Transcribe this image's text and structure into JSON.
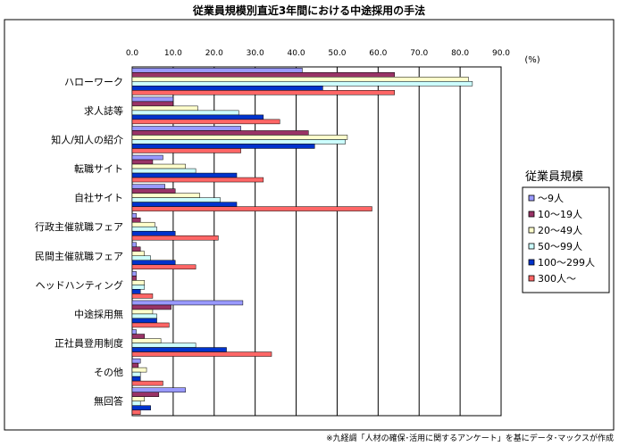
{
  "chart_data": {
    "type": "bar",
    "orientation": "horizontal",
    "title": "従業員規模別直近3年間における中途採用の手法",
    "unit_label": "(%)",
    "xlim": [
      0,
      90
    ],
    "xticks": [
      "0.0",
      "10.0",
      "20.0",
      "30.0",
      "40.0",
      "50.0",
      "60.0",
      "70.0",
      "80.0",
      "90.0"
    ],
    "grid": true,
    "legend_title": "従業員規模",
    "legend_position": "right",
    "categories": [
      "ハローワーク",
      "求人誌等",
      "知人/知人の紹介",
      "転職サイト",
      "自社サイト",
      "行政主催就職フェア",
      "民間主催就職フェア",
      "ヘッドハンティング",
      "中途採用無",
      "正社員登用制度",
      "その他",
      "無回答"
    ],
    "series": [
      {
        "name": "～9人",
        "color": "#9999FF",
        "values": [
          41.5,
          10.0,
          26.5,
          7.5,
          8.0,
          1.0,
          1.0,
          1.0,
          27.0,
          1.0,
          2.0,
          13.0
        ]
      },
      {
        "name": "10～19人",
        "color": "#993366",
        "values": [
          64.0,
          10.0,
          43.0,
          5.0,
          10.5,
          2.0,
          2.0,
          1.0,
          9.5,
          3.0,
          1.5,
          6.5
        ]
      },
      {
        "name": "20～49人",
        "color": "#FFFFCC",
        "values": [
          82.0,
          16.0,
          52.5,
          13.0,
          16.5,
          5.5,
          3.0,
          3.0,
          5.0,
          7.0,
          3.5,
          3.0
        ]
      },
      {
        "name": "50～99人",
        "color": "#CCFFFF",
        "values": [
          83.0,
          26.0,
          52.0,
          15.5,
          21.5,
          6.0,
          4.5,
          3.0,
          6.0,
          15.5,
          2.0,
          2.0
        ]
      },
      {
        "name": "100～299人",
        "color": "#0033CC",
        "values": [
          46.5,
          32.0,
          44.5,
          25.5,
          25.5,
          10.5,
          10.5,
          2.0,
          6.0,
          23.0,
          2.0,
          4.5
        ]
      },
      {
        "name": "300人～",
        "color": "#FF6666",
        "values": [
          64.0,
          36.0,
          26.5,
          32.0,
          58.5,
          21.0,
          15.5,
          5.0,
          9.0,
          34.0,
          7.5,
          2.0
        ]
      }
    ],
    "footnote": "※九経調「人材の確保･活用に関するアンケート」を基にデータ･マックスが作成"
  }
}
